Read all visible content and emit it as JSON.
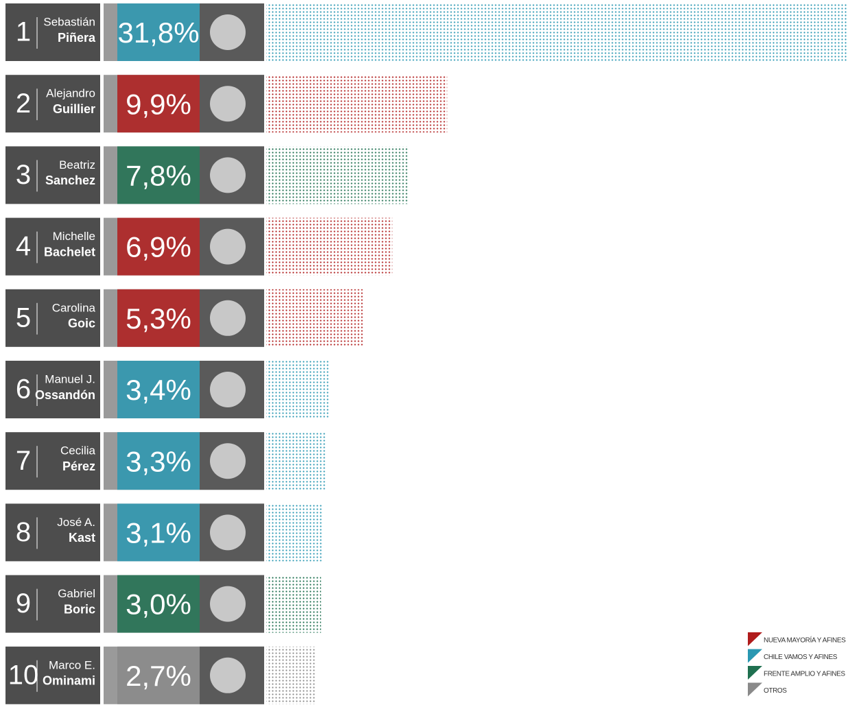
{
  "chart_data": {
    "type": "bar",
    "ranks": [
      1,
      2,
      3,
      4,
      5,
      6,
      7,
      8,
      9,
      10
    ],
    "first_names": [
      "Sebastián",
      "Alejandro",
      "Beatriz",
      "Michelle",
      "Carolina",
      "Manuel J.",
      "Cecilia",
      "José A.",
      "Gabriel",
      "Marco E."
    ],
    "last_names": [
      "Piñera",
      "Guillier",
      "Sanchez",
      "Bachelet",
      "Goic",
      "Ossandón",
      "Pérez",
      "Kast",
      "Boric",
      "Ominami"
    ],
    "values": [
      31.8,
      9.9,
      7.8,
      6.9,
      5.3,
      3.4,
      3.3,
      3.1,
      3.0,
      2.7
    ],
    "value_labels": [
      "31,8%",
      "9,9%",
      "7,8%",
      "6,9%",
      "5,3%",
      "3,4%",
      "3,3%",
      "3,1%",
      "3,0%",
      "2,7%"
    ],
    "colors": [
      "#2a98b2",
      "#b01c1c",
      "#1f7050",
      "#b01c1c",
      "#b01c1c",
      "#2a98b2",
      "#2a98b2",
      "#2a98b2",
      "#1f7050",
      "#8a8a8a"
    ],
    "legend": [
      {
        "name": "NUEVA MAYORÍA Y AFINES",
        "color": "#b01c1c"
      },
      {
        "name": "CHILE VAMOS Y AFINES",
        "color": "#2a98b2"
      },
      {
        "name": "FRENTE AMPLIO Y AFINES",
        "color": "#1f7050"
      },
      {
        "name": "OTROS",
        "color": "#8a8a8a"
      }
    ]
  }
}
